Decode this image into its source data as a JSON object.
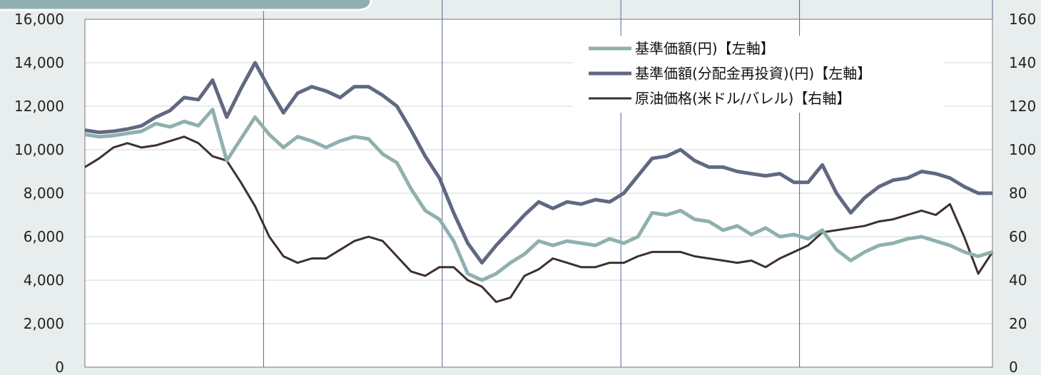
{
  "chart_data": {
    "type": "line",
    "title": "",
    "grid": true,
    "legend_position": "top-right",
    "y_left": {
      "ticks": [
        "0",
        "2,000",
        "4,000",
        "6,000",
        "8,000",
        "10,000",
        "12,000",
        "14,000",
        "16,000"
      ],
      "lim": [
        0,
        16000
      ]
    },
    "y_right": {
      "ticks": [
        "0",
        "20",
        "40",
        "60",
        "80",
        "100",
        "120",
        "140",
        "160"
      ],
      "lim": [
        0,
        160
      ]
    },
    "series": [
      {
        "name": "基準価額(円)【左軸】",
        "axis": "left",
        "color": "#8fb0ae",
        "values": [
          10700,
          10600,
          10650,
          10750,
          10850,
          11200,
          11050,
          11300,
          11100,
          11850,
          9500,
          10500,
          11500,
          10700,
          10100,
          10600,
          10400,
          10100,
          10400,
          10600,
          10500,
          9800,
          9400,
          8200,
          7200,
          6800,
          5800,
          4300,
          4000,
          4300,
          4800,
          5200,
          5800,
          5600,
          5800,
          5700,
          5600,
          5900,
          5700,
          6000,
          7100,
          7000,
          7200,
          6800,
          6700,
          6300,
          6500,
          6100,
          6400,
          6000,
          6100,
          5900,
          6300,
          5400,
          4900,
          5300,
          5600,
          5700,
          5900,
          6000,
          5800,
          5600,
          5300,
          5100,
          5300
        ]
      },
      {
        "name": "基準価額(分配金再投資)(円)【左軸】",
        "axis": "left",
        "color": "#606882",
        "values": [
          10900,
          10800,
          10850,
          10950,
          11100,
          11500,
          11800,
          12400,
          12300,
          13200,
          11500,
          12800,
          14000,
          12800,
          11700,
          12600,
          12900,
          12700,
          12400,
          12900,
          12900,
          12500,
          12000,
          10900,
          9700,
          8700,
          7100,
          5700,
          4800,
          5600,
          6300,
          7000,
          7600,
          7300,
          7600,
          7500,
          7700,
          7600,
          8000,
          8800,
          9600,
          9700,
          10000,
          9500,
          9200,
          9200,
          9000,
          8900,
          8800,
          8900,
          8500,
          8500,
          9300,
          8000,
          7100,
          7800,
          8300,
          8600,
          8700,
          9000,
          8900,
          8700,
          8300,
          8000,
          8000
        ]
      },
      {
        "name": "原油価格(米ドル/バレル)【右軸】",
        "axis": "right",
        "color": "#3d302d",
        "values": [
          92,
          96,
          101,
          103,
          101,
          102,
          104,
          106,
          103,
          97,
          95,
          85,
          74,
          60,
          51,
          48,
          50,
          50,
          54,
          58,
          60,
          58,
          51,
          44,
          42,
          46,
          46,
          40,
          37,
          30,
          32,
          42,
          45,
          50,
          48,
          46,
          46,
          48,
          48,
          51,
          53,
          53,
          53,
          51,
          50,
          49,
          48,
          49,
          46,
          50,
          53,
          56,
          62,
          63,
          64,
          65,
          67,
          68,
          70,
          72,
          70,
          75,
          60,
          43,
          53
        ]
      }
    ]
  }
}
